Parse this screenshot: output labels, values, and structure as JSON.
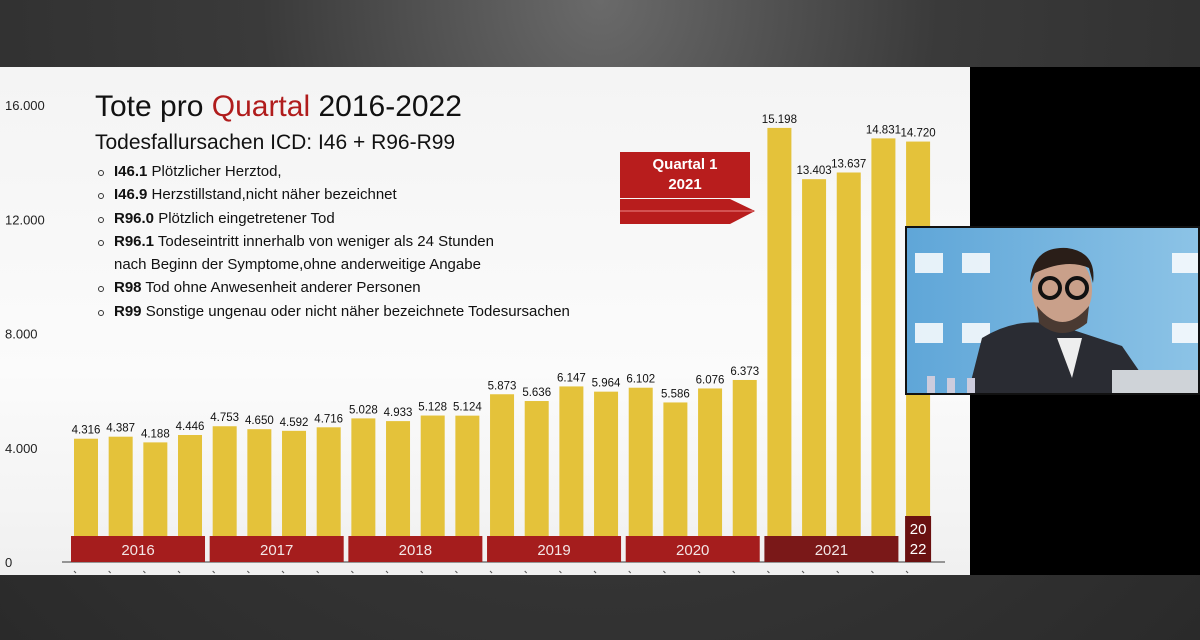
{
  "slide": {
    "title_prefix": "Tote pro ",
    "title_highlight": "Quartal",
    "title_suffix": " 2016-2022",
    "subtitle": "Todesfallursachen ICD: I46 + R96-R99",
    "items": [
      {
        "code": "I46.1",
        "text": " Plötzlicher Herztod,"
      },
      {
        "code": "I46.9",
        "text": " Herzstillstand,nicht näher bezeichnet"
      },
      {
        "code": "R96.0",
        "text": " Plötzlich eingetretener Tod"
      },
      {
        "code": "R96.1",
        "text": " Todeseintritt innerhalb von weniger als 24 Stunden"
      },
      {
        "code": "",
        "text": "nach Beginn der Symptome,ohne anderweitige Angabe"
      },
      {
        "code": "R98",
        "text": " Tod ohne Anwesenheit anderer Personen"
      },
      {
        "code": "R99",
        "text": " Sonstige ungenau oder nicht näher bezeichnete Todesursachen"
      }
    ],
    "callout_line1": "Quartal 1",
    "callout_line2": "2021"
  },
  "chart_data": {
    "type": "bar",
    "title": "Tote pro Quartal 2016-2022",
    "ylim": [
      0,
      16000
    ],
    "yticks": [
      0,
      4000,
      8000,
      12000,
      16000
    ],
    "ytick_labels": [
      "0",
      "4.000",
      "8.000",
      "12.000",
      "16.000"
    ],
    "years": [
      {
        "label": "2016",
        "quarters": 4
      },
      {
        "label": "2017",
        "quarters": 4
      },
      {
        "label": "2018",
        "quarters": 4
      },
      {
        "label": "2019",
        "quarters": 4
      },
      {
        "label": "2020",
        "quarters": 4
      },
      {
        "label": "2021",
        "quarters": 4
      },
      {
        "label": "20 22",
        "quarters": 1
      }
    ],
    "values": [
      4316,
      4387,
      4188,
      4446,
      4753,
      4650,
      4592,
      4716,
      5028,
      4933,
      5128,
      5124,
      5873,
      5636,
      6147,
      5964,
      6102,
      5586,
      6076,
      6373,
      15198,
      13403,
      13637,
      14831,
      14720
    ],
    "value_labels": [
      "4.316",
      "4.387",
      "4.188",
      "4.446",
      "4.753",
      "4.650",
      "4.592",
      "4.716",
      "5.028",
      "4.933",
      "5.128",
      "5.124",
      "5.873",
      "5.636",
      "6.147",
      "5.964",
      "6.102",
      "5.586",
      "6.076",
      "6.373",
      "15.198",
      "13.403",
      "13.637",
      "14.831",
      "14.720"
    ],
    "colors": {
      "bar": "#e4c23a",
      "year_band": "#a51d1d",
      "year_band_2021": "#7a1818",
      "year_band_2022": "#6a1010"
    }
  }
}
